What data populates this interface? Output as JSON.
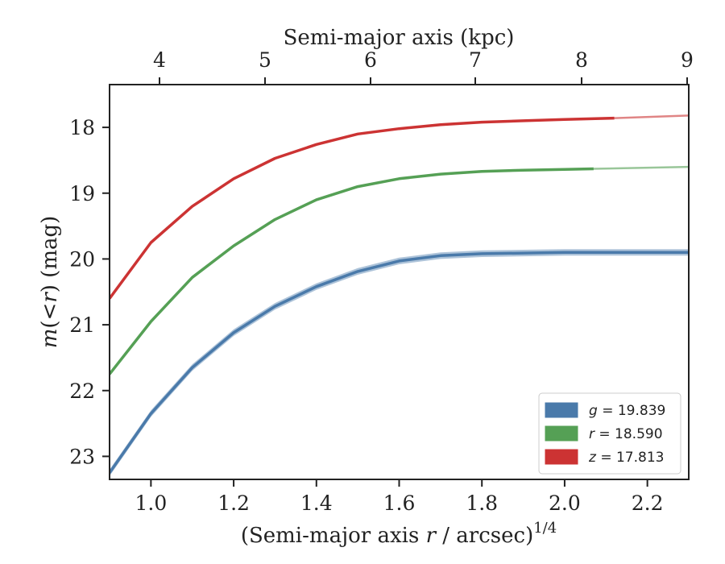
{
  "chart_data": {
    "type": "line",
    "xlabel": "(Semi-major axis r / arcsec)^1/4",
    "ylabel": "m(<r) (mag)",
    "top_xlabel": "Semi-major axis (kpc)",
    "xlim": [
      0.9,
      2.3
    ],
    "ylim": [
      23.35,
      17.35
    ],
    "y_inverted": true,
    "x_ticks": [
      "1.0",
      "1.2",
      "1.4",
      "1.6",
      "1.8",
      "2.0",
      "2.2"
    ],
    "x_tick_values": [
      1.0,
      1.2,
      1.4,
      1.6,
      1.8,
      2.0,
      2.2
    ],
    "y_ticks": [
      "18",
      "19",
      "20",
      "21",
      "22",
      "23"
    ],
    "y_tick_values": [
      18,
      19,
      20,
      21,
      22,
      23
    ],
    "top_ticks": [
      "4",
      "5",
      "6",
      "7",
      "8",
      "9"
    ],
    "top_tick_values_kpc": [
      4,
      5,
      6,
      7,
      8,
      9
    ],
    "grid": false,
    "legend_position": "lower-right",
    "series": [
      {
        "name": "g = 19.839",
        "band": "g",
        "color": "#4a7aaa",
        "x": [
          0.9,
          1.0,
          1.1,
          1.2,
          1.3,
          1.4,
          1.5,
          1.6,
          1.7,
          1.8,
          1.9,
          2.0,
          2.1,
          2.2,
          2.3
        ],
        "y": [
          23.25,
          22.35,
          21.65,
          21.12,
          20.72,
          20.42,
          20.19,
          20.03,
          19.95,
          19.92,
          19.91,
          19.9,
          19.9,
          19.9,
          19.9
        ],
        "band_width": 0.05
      },
      {
        "name": "r = 18.590",
        "band": "r",
        "color": "#55a055",
        "x": [
          0.9,
          1.0,
          1.1,
          1.2,
          1.3,
          1.4,
          1.5,
          1.6,
          1.7,
          1.8,
          1.9,
          2.0,
          2.07
        ],
        "y": [
          21.75,
          20.95,
          20.28,
          19.8,
          19.4,
          19.1,
          18.9,
          18.78,
          18.71,
          18.67,
          18.65,
          18.64,
          18.63
        ],
        "extension_x": [
          2.07,
          2.3
        ],
        "extension_y": [
          18.63,
          18.6
        ]
      },
      {
        "name": "z = 17.813",
        "band": "z",
        "color": "#cc3333",
        "x": [
          0.9,
          1.0,
          1.1,
          1.2,
          1.3,
          1.4,
          1.5,
          1.6,
          1.7,
          1.8,
          1.9,
          2.0,
          2.12
        ],
        "y": [
          20.6,
          19.75,
          19.2,
          18.78,
          18.47,
          18.26,
          18.1,
          18.02,
          17.96,
          17.92,
          17.9,
          17.88,
          17.86
        ],
        "extension_x": [
          2.12,
          2.3
        ],
        "extension_y": [
          17.86,
          17.82
        ]
      }
    ]
  }
}
